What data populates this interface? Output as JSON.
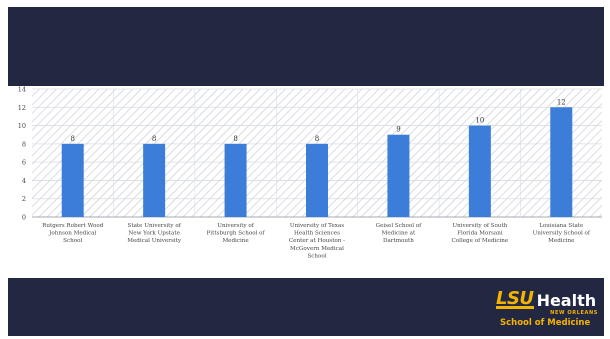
{
  "chart_data": {
    "type": "bar",
    "categories": [
      "Rutgers Robert Wood Johnson Medical School",
      "State University of New York Upstate Medical University",
      "University of Pittsburgh School of Medicine",
      "University of Texas Health Sciences Center at Houston - McGovern Medical School",
      "Geisel School of Medicine at Dartmouth",
      "University of South Florida Morsani College of Medicine",
      "Louisiana State University School of Medicine"
    ],
    "category_lines": [
      [
        "Rutgers Robert Wood",
        "Johnson Medical",
        "School"
      ],
      [
        "State University of",
        "New York Upstate",
        "Medical University"
      ],
      [
        "University of",
        "Pittsburgh School of",
        "Medicine"
      ],
      [
        "University of Texas",
        "Health Sciences",
        "Center at Houston -",
        "McGovern Medical",
        "School"
      ],
      [
        "Geisel School of",
        "Medicine at",
        "Dartmouth"
      ],
      [
        "University of South",
        "Florida Morsani",
        "College of Medicine"
      ],
      [
        "Louisiana State",
        "University School of",
        "Medicine"
      ]
    ],
    "values": [
      8,
      8,
      8,
      8,
      9,
      10,
      12
    ],
    "title": "",
    "xlabel": "",
    "ylabel": "",
    "ylim": [
      0,
      14
    ],
    "yticks": [
      0,
      2,
      4,
      6,
      8,
      10,
      12,
      14
    ],
    "grid": true,
    "legend": "none",
    "bar_color": "#3b7dd8",
    "background_pattern": "diagonal-hatch"
  },
  "logo": {
    "brand": "LSU",
    "product": "Health",
    "location": "NEW ORLEANS",
    "unit": "School of Medicine",
    "gold_color": "#f5b301"
  },
  "theme": {
    "slide_background": "#232842",
    "panel_background": "#ffffff"
  }
}
